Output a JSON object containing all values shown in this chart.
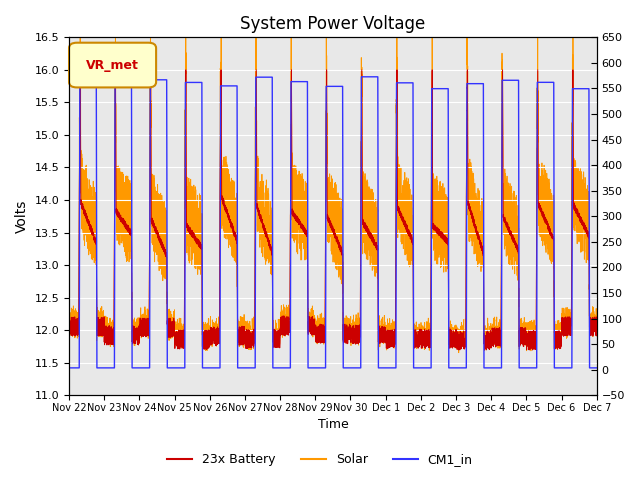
{
  "title": "System Power Voltage",
  "xlabel": "Time",
  "ylabel": "Volts",
  "ylim_left": [
    11.0,
    16.5
  ],
  "ylim_right": [
    -50,
    650
  ],
  "xtick_labels": [
    "Nov 22",
    "Nov 23",
    "Nov 24",
    "Nov 25",
    "Nov 26",
    "Nov 27",
    "Nov 28",
    "Nov 29",
    "Nov 30",
    "Dec 1",
    "Dec 2",
    "Dec 3",
    "Dec 4",
    "Dec 5",
    "Dec 6",
    "Dec 7"
  ],
  "colors": {
    "battery": "#cc0000",
    "solar": "#ff9900",
    "cm1": "#3333ff",
    "bg": "#e8e8e8",
    "vr_box_bg": "#ffffcc",
    "vr_box_border": "#cc8800",
    "vr_text": "#cc0000"
  },
  "legend": [
    "23x Battery",
    "Solar",
    "CM1_in"
  ],
  "vr_label": "VR_met",
  "num_days": 15,
  "seed": 42
}
